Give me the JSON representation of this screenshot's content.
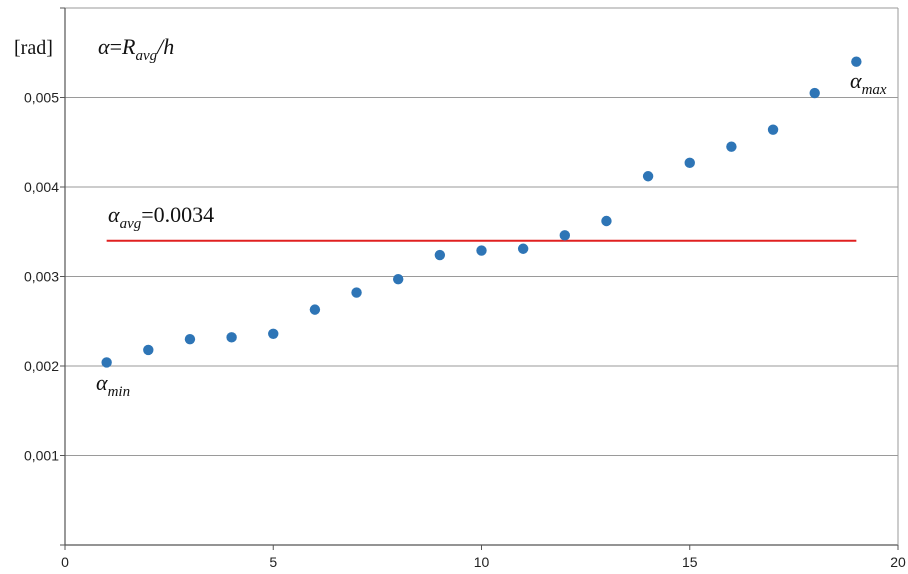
{
  "chart_data": {
    "type": "scatter",
    "y_unit_label": "[rad]",
    "formula": {
      "lhs": "α",
      "eq": "=",
      "r": "R",
      "r_sub": "avg",
      "slash": "/h"
    },
    "x_ticks": [
      "0",
      "5",
      "10",
      "15",
      "20"
    ],
    "y_ticks": [
      "0,001",
      "0,002",
      "0,003",
      "0,004",
      "0,005"
    ],
    "xlim": [
      0,
      20
    ],
    "ylim": [
      0,
      0.006
    ],
    "grid": "horizontal",
    "series": [
      {
        "color": "#2e75b6",
        "x": [
          1,
          2,
          3,
          4,
          5,
          6,
          7,
          8,
          9,
          10,
          11,
          12,
          13,
          14,
          15,
          16,
          17,
          18,
          19
        ],
        "y": [
          0.00204,
          0.00218,
          0.0023,
          0.00232,
          0.00236,
          0.00263,
          0.00282,
          0.00297,
          0.00324,
          0.00329,
          0.00331,
          0.00346,
          0.00362,
          0.00412,
          0.00427,
          0.00445,
          0.00464,
          0.00505,
          0.0054
        ]
      }
    ],
    "reference_line": {
      "y": 0.0034,
      "x_range": [
        1,
        19
      ],
      "color": "#e02020",
      "label_symbol": "α",
      "label_sub": "avg",
      "label_value": "=0.0034"
    },
    "annotations": {
      "min": {
        "symbol": "α",
        "sub": "min"
      },
      "max": {
        "symbol": "α",
        "sub": "max"
      }
    }
  }
}
